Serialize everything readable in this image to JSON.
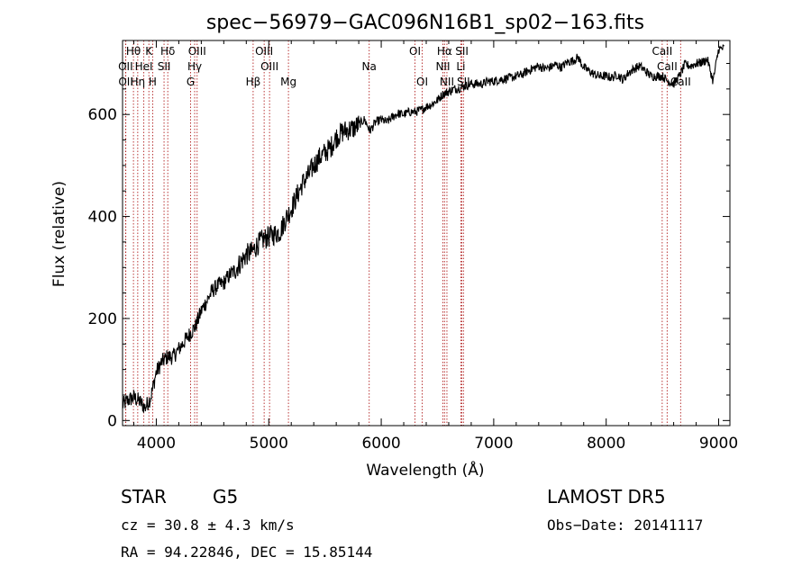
{
  "chart_data": {
    "type": "line",
    "title": "spec−56979−GAC096N16B1_sp02−163.fits",
    "xlabel": "Wavelength (Å)",
    "ylabel": "Flux (relative)",
    "xlim": [
      3700,
      9100
    ],
    "ylim": [
      -10,
      745
    ],
    "xticks": [
      4000,
      5000,
      6000,
      7000,
      8000,
      9000
    ],
    "yticks": [
      0,
      200,
      400,
      600
    ],
    "grid": false,
    "series": [
      {
        "x": [
          3700,
          3750,
          3800,
          3850,
          3900,
          3950,
          4000,
          4050,
          4100,
          4150,
          4200,
          4250,
          4300,
          4350,
          4400,
          4450,
          4500,
          4550,
          4600,
          4650,
          4700,
          4750,
          4800,
          4850,
          4900,
          4950,
          5000,
          5050,
          5100,
          5150,
          5200,
          5250,
          5300,
          5350,
          5400,
          5450,
          5500,
          5550,
          5600,
          5650,
          5700,
          5750,
          5800,
          5850,
          5900,
          5950,
          6000,
          6050,
          6100,
          6150,
          6200,
          6250,
          6300,
          6350,
          6400,
          6450,
          6500,
          6550,
          6600,
          6650,
          6700,
          6750,
          6800,
          6850,
          6900,
          6950,
          7000,
          7050,
          7100,
          7150,
          7200,
          7250,
          7300,
          7350,
          7400,
          7450,
          7500,
          7550,
          7600,
          7650,
          7700,
          7750,
          7800,
          7850,
          7900,
          7950,
          8000,
          8050,
          8100,
          8150,
          8200,
          8250,
          8300,
          8350,
          8400,
          8450,
          8500,
          8550,
          8600,
          8650,
          8700,
          8750,
          8800,
          8850,
          8900,
          8950,
          9000,
          9050
        ],
        "y": [
          30,
          40,
          45,
          38,
          25,
          45,
          95,
          115,
          125,
          125,
          140,
          155,
          170,
          185,
          215,
          235,
          255,
          265,
          270,
          285,
          295,
          310,
          325,
          330,
          345,
          355,
          360,
          365,
          370,
          395,
          415,
          440,
          465,
          480,
          500,
          515,
          525,
          535,
          555,
          565,
          570,
          572,
          580,
          590,
          568,
          585,
          590,
          585,
          595,
          602,
          600,
          605,
          605,
          608,
          615,
          620,
          628,
          640,
          645,
          650,
          652,
          656,
          660,
          660,
          660,
          665,
          665,
          668,
          670,
          672,
          675,
          678,
          685,
          690,
          695,
          690,
          692,
          698,
          692,
          702,
          705,
          712,
          692,
          685,
          678,
          675,
          675,
          672,
          678,
          668,
          682,
          690,
          695,
          685,
          675,
          675,
          675,
          665,
          660,
          675,
          698,
          695,
          700,
          702,
          708,
          665,
          728,
          730
        ]
      }
    ],
    "lines": [
      {
        "label": "Hθ",
        "x": 3797
      },
      {
        "label": "K",
        "x": 3934
      },
      {
        "label": "Hδ",
        "x": 4102
      },
      {
        "label": "OIII",
        "x": 4363
      },
      {
        "label": "OIII",
        "x": 4959
      },
      {
        "label": "OI",
        "x": 6300
      },
      {
        "label": "Hα",
        "x": 6563
      },
      {
        "label": "SII",
        "x": 6717
      },
      {
        "label": "CaII",
        "x": 8498
      },
      {
        "label": "OII",
        "x": 3727
      },
      {
        "label": "HeI",
        "x": 3889
      },
      {
        "label": "SII",
        "x": 4069
      },
      {
        "label": "Hγ",
        "x": 4341
      },
      {
        "label": "OIII",
        "x": 5007
      },
      {
        "label": "Na",
        "x": 5893
      },
      {
        "label": "NII",
        "x": 6548
      },
      {
        "label": "Li",
        "x": 6708
      },
      {
        "label": "CaII",
        "x": 8542
      },
      {
        "label": "OII",
        "x": 3729
      },
      {
        "label": "Hη",
        "x": 3835
      },
      {
        "label": "H",
        "x": 3968
      },
      {
        "label": "G",
        "x": 4305
      },
      {
        "label": "Hβ",
        "x": 4861
      },
      {
        "label": "Mg",
        "x": 5175
      },
      {
        "label": "OI",
        "x": 6364
      },
      {
        "label": "NII",
        "x": 6584
      },
      {
        "label": "SII",
        "x": 6731
      },
      {
        "label": "CaII",
        "x": 8662
      }
    ]
  },
  "info": {
    "class": "STAR",
    "subclass": "G5",
    "survey": "LAMOST DR5",
    "cz": "cz = 30.8 ± 4.3 km/s",
    "obsdate": "Obs−Date: 20141117",
    "radec": "RA =  94.22846, DEC =  15.85144"
  }
}
